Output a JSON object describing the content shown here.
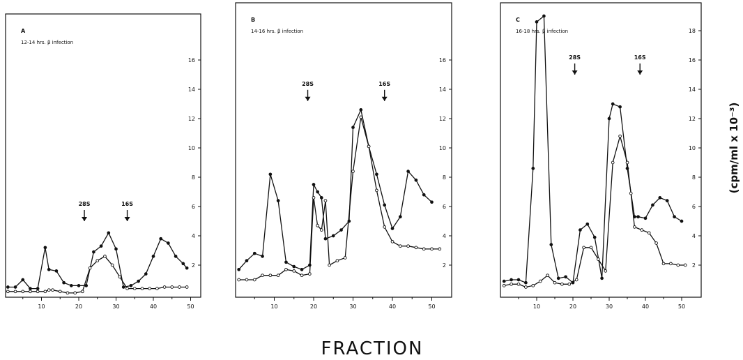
{
  "chart_data": [
    {
      "type": "line",
      "panel": "A",
      "condition": "12-14 hrs. β infection",
      "xticks": [
        "10",
        "20",
        "30",
        "40",
        "50"
      ],
      "yticks": [
        "2",
        "4",
        "6",
        "8",
        "10",
        "12",
        "14",
        "16"
      ],
      "xlim": [
        0,
        55
      ],
      "ylim": [
        0,
        20
      ],
      "markers": [
        {
          "label": "28S",
          "x": 21.5,
          "y": 5.0
        },
        {
          "label": "16S",
          "x": 33.0,
          "y": 5.0
        }
      ],
      "series": [
        {
          "marker": "filled",
          "x": [
            1,
            3,
            5,
            7,
            9,
            11,
            12,
            14,
            16,
            18,
            20,
            22,
            24,
            26,
            28,
            30,
            32,
            34,
            36,
            38,
            40,
            42,
            44,
            46,
            48,
            49
          ],
          "y": [
            0.5,
            0.5,
            1.0,
            0.4,
            0.4,
            3.2,
            1.7,
            1.6,
            0.8,
            0.6,
            0.6,
            0.6,
            2.9,
            3.3,
            4.2,
            3.1,
            0.5,
            0.6,
            0.9,
            1.4,
            2.6,
            3.8,
            3.5,
            2.6,
            2.1,
            1.8
          ]
        },
        {
          "marker": "open",
          "x": [
            1,
            3,
            5,
            7,
            9,
            11,
            12,
            13,
            15,
            17,
            19,
            21,
            23,
            25,
            27,
            29,
            31,
            33,
            35,
            37,
            39,
            41,
            43,
            45,
            47,
            49
          ],
          "y": [
            0.2,
            0.2,
            0.2,
            0.2,
            0.2,
            0.2,
            0.3,
            0.3,
            0.2,
            0.1,
            0.1,
            0.2,
            1.8,
            2.3,
            2.6,
            2.0,
            1.2,
            0.4,
            0.4,
            0.4,
            0.4,
            0.4,
            0.5,
            0.5,
            0.5,
            0.5
          ]
        }
      ]
    },
    {
      "type": "line",
      "panel": "B",
      "condition": "14-16 hrs. β infection",
      "xticks": [
        "10",
        "20",
        "30",
        "40",
        "50"
      ],
      "yticks": [
        "2",
        "4",
        "6",
        "8",
        "10",
        "12",
        "14",
        "16"
      ],
      "xlim": [
        0,
        55
      ],
      "ylim": [
        0,
        20
      ],
      "markers": [
        {
          "label": "28S",
          "x": 18.5,
          "y": 13.2
        },
        {
          "label": "16S",
          "x": 38.0,
          "y": 13.2
        }
      ],
      "series": [
        {
          "marker": "filled",
          "x": [
            1,
            3,
            5,
            7,
            9,
            11,
            13,
            15,
            17,
            19,
            20,
            21,
            22,
            23,
            25,
            27,
            29,
            30,
            32,
            34,
            36,
            38,
            40,
            42,
            44,
            46,
            48,
            50
          ],
          "y": [
            1.7,
            2.3,
            2.8,
            2.6,
            8.2,
            6.4,
            2.2,
            1.9,
            1.7,
            2.0,
            7.5,
            7.0,
            6.6,
            3.8,
            4.0,
            4.4,
            5.0,
            11.4,
            12.6,
            10.1,
            8.2,
            6.1,
            4.5,
            5.3,
            8.4,
            7.8,
            6.8,
            6.3
          ]
        },
        {
          "marker": "open",
          "x": [
            1,
            3,
            5,
            7,
            9,
            11,
            13,
            15,
            17,
            19,
            20,
            21,
            22,
            23,
            24,
            26,
            28,
            30,
            32,
            34,
            36,
            38,
            40,
            42,
            44,
            46,
            48,
            50,
            52
          ],
          "y": [
            1.0,
            1.0,
            1.0,
            1.3,
            1.3,
            1.3,
            1.7,
            1.6,
            1.3,
            1.4,
            6.6,
            4.7,
            4.4,
            6.4,
            2.0,
            2.3,
            2.5,
            8.4,
            12.1,
            10.1,
            7.1,
            4.6,
            3.6,
            3.3,
            3.3,
            3.2,
            3.1,
            3.1,
            3.1
          ]
        }
      ]
    },
    {
      "type": "line",
      "panel": "C",
      "condition": "16-18 hrs. β infection",
      "xticks": [
        "10",
        "20",
        "30",
        "40",
        "50"
      ],
      "yticks": [
        "2",
        "4",
        "6",
        "8",
        "10",
        "12",
        "14",
        "16",
        "18"
      ],
      "xlim": [
        0,
        55
      ],
      "ylim": [
        0,
        20
      ],
      "markers": [
        {
          "label": "28S",
          "x": 20.5,
          "y": 15.0
        },
        {
          "label": "16S",
          "x": 38.5,
          "y": 15.0
        }
      ],
      "series": [
        {
          "marker": "filled",
          "x": [
            1,
            3,
            5,
            7,
            9,
            10,
            12,
            14,
            16,
            18,
            20,
            22,
            24,
            26,
            28,
            30,
            31,
            33,
            35,
            37,
            38,
            40,
            42,
            44,
            46,
            48,
            50
          ],
          "y": [
            0.9,
            1.0,
            1.0,
            0.8,
            8.6,
            18.6,
            19.0,
            3.4,
            1.1,
            1.2,
            0.8,
            4.4,
            4.8,
            3.9,
            1.1,
            12.0,
            13.0,
            12.8,
            8.6,
            5.3,
            5.3,
            5.2,
            6.1,
            6.6,
            6.4,
            5.3,
            5.0
          ]
        },
        {
          "marker": "open",
          "x": [
            1,
            3,
            5,
            7,
            9,
            11,
            13,
            15,
            17,
            19,
            21,
            23,
            25,
            27,
            29,
            31,
            33,
            35,
            36,
            37,
            39,
            41,
            43,
            45,
            47,
            49,
            51
          ],
          "y": [
            0.6,
            0.7,
            0.7,
            0.5,
            0.6,
            0.9,
            1.3,
            0.8,
            0.7,
            0.7,
            1.0,
            3.2,
            3.2,
            2.4,
            1.6,
            9.0,
            10.8,
            9.0,
            6.9,
            4.6,
            4.4,
            4.2,
            3.5,
            2.1,
            2.1,
            2.0,
            2.0
          ]
        }
      ]
    }
  ],
  "axis_titles": {
    "y": "(cpm/ml x 10⁻³)",
    "x": "FRACTION"
  }
}
